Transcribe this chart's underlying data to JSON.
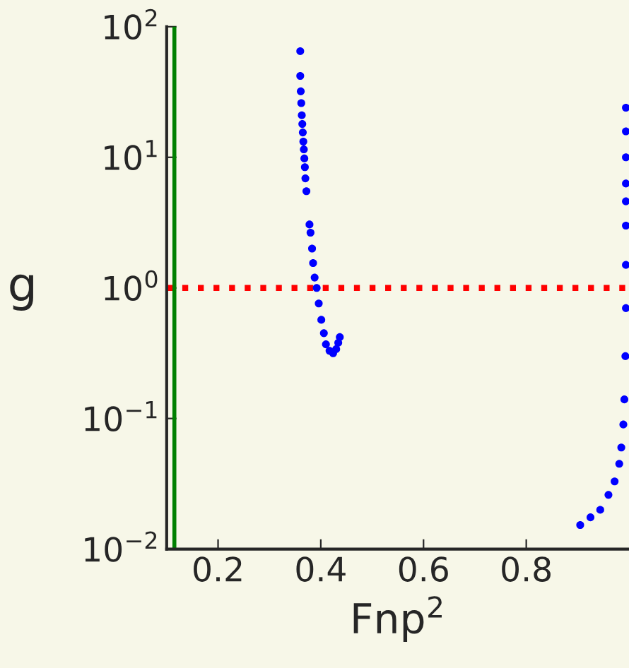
{
  "chart_data": {
    "type": "scatter",
    "xlabel": "Fnp$^{2}$",
    "ylabel": "g",
    "log": "y",
    "xlim": [
      0.1,
      1.0
    ],
    "xticks": [
      0.2,
      0.4,
      0.6,
      0.8
    ],
    "ylim": [
      0.01,
      100
    ],
    "yticks": [
      {
        "value": 0.01,
        "label": "10$^{−2}$"
      },
      {
        "value": 0.1,
        "label": "10$^{−1}$"
      },
      {
        "value": 1,
        "label": "10$^{0}$"
      },
      {
        "value": 10,
        "label": "10$^{1}$"
      },
      {
        "value": 100,
        "label": "10$^{2}$"
      }
    ],
    "grid": false,
    "legend": false,
    "marker": "circle",
    "series": [
      {
        "color": "#0000ff",
        "x": [
          0.36,
          0.36,
          0.361,
          0.362,
          0.363,
          0.364,
          0.365,
          0.366,
          0.367,
          0.368,
          0.369,
          0.37,
          0.372,
          0.378,
          0.38,
          0.383,
          0.385,
          0.388,
          0.392,
          0.396,
          0.401,
          0.406,
          0.41,
          0.417,
          0.424,
          0.43,
          0.434,
          0.437
        ],
        "values": [
          65,
          42,
          32,
          26,
          21,
          18,
          15.5,
          13.2,
          11.5,
          9.8,
          8.4,
          6.9,
          5.5,
          3.06,
          2.65,
          2.0,
          1.55,
          1.2,
          1.0,
          0.76,
          0.57,
          0.45,
          0.37,
          0.33,
          0.316,
          0.34,
          0.38,
          0.42
        ]
      },
      {
        "color": "#0000ff",
        "x": [
          0.905,
          0.925,
          0.944,
          0.96,
          0.972,
          0.981,
          0.985,
          0.989,
          0.991,
          0.993,
          0.994,
          0.994,
          0.994,
          0.994,
          0.994,
          0.994,
          0.994,
          0.994
        ],
        "values": [
          0.0153,
          0.0175,
          0.02,
          0.026,
          0.033,
          0.045,
          0.06,
          0.09,
          0.14,
          0.3,
          0.7,
          1.5,
          3,
          4.6,
          6.3,
          10,
          15.8,
          24
        ]
      }
    ],
    "ref_lines": [
      {
        "axis": "y",
        "value": 1,
        "color": "#ff0000",
        "line_style": "dotted"
      },
      {
        "axis": "x",
        "value": 0.115,
        "color": "#008000",
        "line_style": "solid"
      }
    ]
  }
}
